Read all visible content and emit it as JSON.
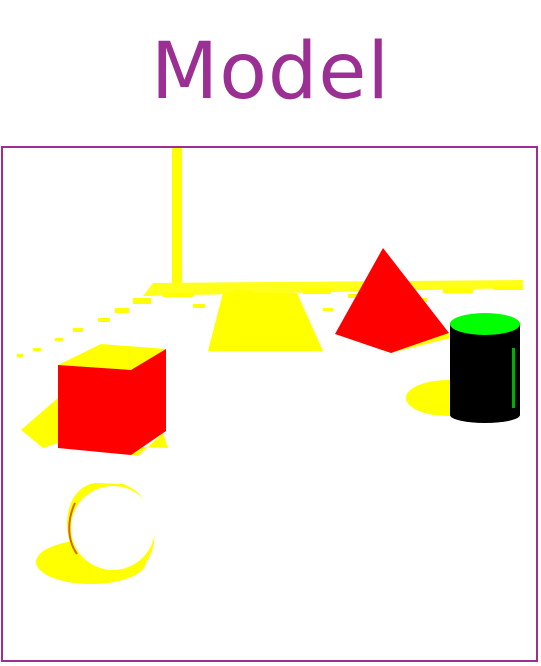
{
  "title": {
    "text": "Model",
    "color": "#9b2f93"
  },
  "frame": {
    "border_color": "#9b2f93"
  },
  "scene": {
    "colors": {
      "shadow": "#ffff00",
      "cube": "#ff0000",
      "pyramid": "#ff0000",
      "cylinder_body": "#000000",
      "cylinder_top": "#00ff00",
      "sphere": "#ffffff",
      "background": "#ffffff"
    },
    "objects": [
      "cube-icon",
      "pyramid-icon",
      "cylinder-icon",
      "sphere-icon",
      "wall-corner"
    ]
  }
}
